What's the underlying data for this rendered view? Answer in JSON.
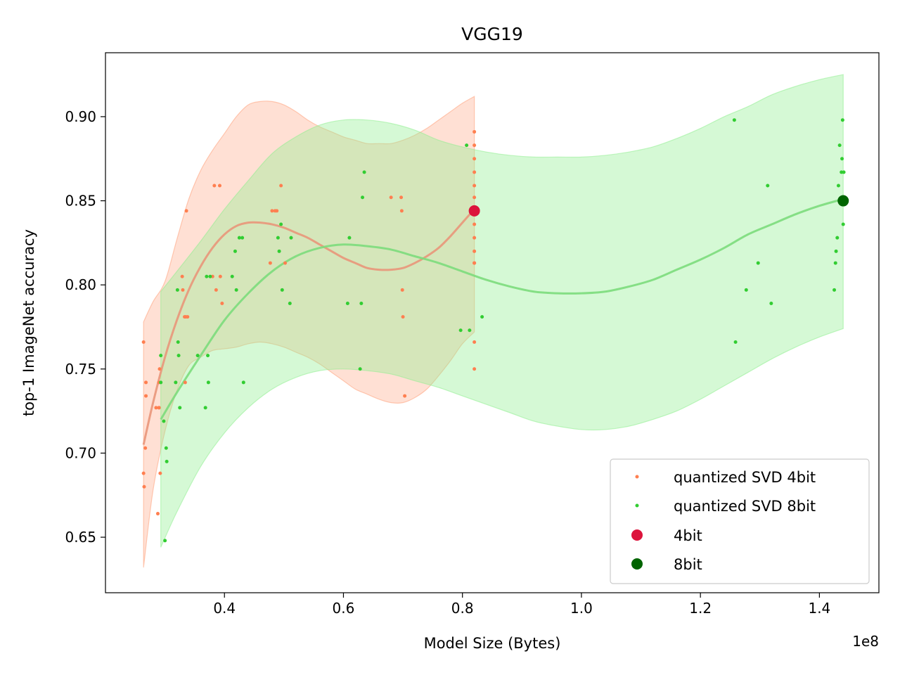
{
  "chart_data": {
    "type": "scatter",
    "title": "VGG19",
    "xlabel": "Model Size (Bytes)",
    "ylabel": "top-1 ImageNet accuracy",
    "x_offset_label": "1e8",
    "x_scale": 100000000,
    "xlim": [
      0.2,
      1.5
    ],
    "ylim": [
      0.617,
      0.938
    ],
    "x_ticks": [
      0.4,
      0.6,
      0.8,
      1.0,
      1.2,
      1.4
    ],
    "x_tick_labels": [
      "0.4",
      "0.6",
      "0.8",
      "1.0",
      "1.2",
      "1.4"
    ],
    "y_ticks": [
      0.65,
      0.7,
      0.75,
      0.8,
      0.85,
      0.9
    ],
    "y_tick_labels": [
      "0.65",
      "0.70",
      "0.75",
      "0.80",
      "0.85",
      "0.90"
    ],
    "grid": false,
    "legend_position": "lower-right",
    "series": [
      {
        "name": "quantized SVD 4bit",
        "kind": "points",
        "color": "#ff7f50",
        "x": [
          0.264,
          0.264,
          0.265,
          0.267,
          0.268,
          0.268,
          0.285,
          0.288,
          0.29,
          0.29,
          0.29,
          0.291,
          0.292,
          0.329,
          0.33,
          0.333,
          0.334,
          0.335,
          0.336,
          0.338,
          0.38,
          0.383,
          0.386,
          0.392,
          0.393,
          0.396,
          0.477,
          0.48,
          0.485,
          0.488,
          0.495,
          0.502,
          0.68,
          0.697,
          0.698,
          0.699,
          0.7,
          0.703,
          0.82,
          0.82,
          0.82,
          0.82,
          0.82,
          0.82,
          0.82,
          0.82,
          0.82,
          0.82,
          0.82,
          0.82,
          0.82,
          0.82
        ],
        "y": [
          0.766,
          0.688,
          0.68,
          0.703,
          0.742,
          0.734,
          0.727,
          0.664,
          0.742,
          0.727,
          0.727,
          0.75,
          0.688,
          0.805,
          0.797,
          0.781,
          0.742,
          0.781,
          0.844,
          0.781,
          0.805,
          0.859,
          0.797,
          0.859,
          0.805,
          0.789,
          0.813,
          0.844,
          0.844,
          0.844,
          0.859,
          0.813,
          0.852,
          0.852,
          0.844,
          0.797,
          0.781,
          0.734,
          0.891,
          0.883,
          0.875,
          0.867,
          0.859,
          0.852,
          0.844,
          0.836,
          0.828,
          0.82,
          0.813,
          0.813,
          0.766,
          0.75
        ]
      },
      {
        "name": "quantized SVD 8bit",
        "kind": "points",
        "color": "#32cd32",
        "x": [
          0.293,
          0.293,
          0.298,
          0.3,
          0.302,
          0.303,
          0.318,
          0.321,
          0.322,
          0.323,
          0.325,
          0.355,
          0.368,
          0.37,
          0.372,
          0.373,
          0.376,
          0.413,
          0.418,
          0.42,
          0.425,
          0.43,
          0.432,
          0.49,
          0.492,
          0.495,
          0.497,
          0.51,
          0.512,
          0.607,
          0.61,
          0.628,
          0.63,
          0.632,
          0.635,
          0.797,
          0.807,
          0.812,
          0.833,
          1.257,
          1.259,
          1.277,
          1.297,
          1.313,
          1.319,
          1.425,
          1.427,
          1.428,
          1.43,
          1.432,
          1.434,
          1.437,
          1.438,
          1.439,
          1.44,
          1.441
        ],
        "y": [
          0.758,
          0.742,
          0.719,
          0.648,
          0.703,
          0.695,
          0.742,
          0.797,
          0.766,
          0.758,
          0.727,
          0.758,
          0.727,
          0.805,
          0.758,
          0.742,
          0.805,
          0.805,
          0.82,
          0.797,
          0.828,
          0.828,
          0.742,
          0.828,
          0.82,
          0.836,
          0.797,
          0.789,
          0.828,
          0.789,
          0.828,
          0.75,
          0.789,
          0.852,
          0.867,
          0.773,
          0.883,
          0.773,
          0.781,
          0.898,
          0.766,
          0.797,
          0.813,
          0.859,
          0.789,
          0.797,
          0.813,
          0.82,
          0.828,
          0.859,
          0.883,
          0.867,
          0.875,
          0.898,
          0.836,
          0.867
        ]
      },
      {
        "name": "4bit",
        "kind": "marker",
        "color": "#dc143c",
        "x": [
          0.82
        ],
        "y": [
          0.844
        ]
      },
      {
        "name": "8bit",
        "kind": "marker",
        "color": "#006400",
        "x": [
          1.44
        ],
        "y": [
          0.85
        ]
      }
    ],
    "fits": [
      {
        "series": "quantized SVD 4bit",
        "color": "#e9967a",
        "band_color": "#ffa07a",
        "x": [
          0.264,
          0.28,
          0.3,
          0.32,
          0.34,
          0.36,
          0.38,
          0.4,
          0.42,
          0.44,
          0.46,
          0.48,
          0.5,
          0.52,
          0.54,
          0.56,
          0.58,
          0.6,
          0.62,
          0.64,
          0.66,
          0.68,
          0.7,
          0.72,
          0.74,
          0.76,
          0.78,
          0.8,
          0.82
        ],
        "y": [
          0.705,
          0.73,
          0.757,
          0.779,
          0.797,
          0.811,
          0.822,
          0.83,
          0.835,
          0.837,
          0.837,
          0.836,
          0.834,
          0.831,
          0.828,
          0.824,
          0.82,
          0.816,
          0.813,
          0.81,
          0.809,
          0.809,
          0.81,
          0.813,
          0.817,
          0.822,
          0.829,
          0.837,
          0.845
        ],
        "lower": [
          0.632,
          0.678,
          0.713,
          0.737,
          0.752,
          0.757,
          0.761,
          0.762,
          0.763,
          0.765,
          0.766,
          0.765,
          0.763,
          0.76,
          0.757,
          0.753,
          0.748,
          0.743,
          0.738,
          0.735,
          0.732,
          0.73,
          0.73,
          0.733,
          0.738,
          0.746,
          0.755,
          0.765,
          0.772
        ],
        "upper": [
          0.778,
          0.79,
          0.802,
          0.827,
          0.851,
          0.868,
          0.88,
          0.89,
          0.9,
          0.907,
          0.909,
          0.909,
          0.907,
          0.903,
          0.898,
          0.894,
          0.891,
          0.888,
          0.886,
          0.884,
          0.884,
          0.884,
          0.886,
          0.889,
          0.893,
          0.898,
          0.903,
          0.908,
          0.912
        ]
      },
      {
        "series": "quantized SVD 8bit",
        "color": "#7cdb7c",
        "band_color": "#90ee90",
        "x": [
          0.293,
          0.32,
          0.36,
          0.4,
          0.44,
          0.48,
          0.52,
          0.56,
          0.6,
          0.64,
          0.68,
          0.72,
          0.76,
          0.8,
          0.84,
          0.88,
          0.92,
          0.96,
          1.0,
          1.04,
          1.08,
          1.12,
          1.16,
          1.2,
          1.24,
          1.28,
          1.32,
          1.36,
          1.4,
          1.44
        ],
        "y": [
          0.72,
          0.736,
          0.758,
          0.779,
          0.795,
          0.808,
          0.817,
          0.822,
          0.824,
          0.823,
          0.821,
          0.817,
          0.813,
          0.808,
          0.803,
          0.799,
          0.796,
          0.795,
          0.795,
          0.796,
          0.799,
          0.803,
          0.809,
          0.815,
          0.822,
          0.83,
          0.836,
          0.842,
          0.847,
          0.851
        ],
        "lower": [
          0.644,
          0.665,
          0.692,
          0.712,
          0.727,
          0.738,
          0.745,
          0.749,
          0.75,
          0.749,
          0.747,
          0.743,
          0.739,
          0.734,
          0.729,
          0.724,
          0.719,
          0.716,
          0.714,
          0.714,
          0.716,
          0.72,
          0.725,
          0.732,
          0.74,
          0.748,
          0.756,
          0.763,
          0.769,
          0.774
        ],
        "upper": [
          0.796,
          0.808,
          0.826,
          0.845,
          0.862,
          0.878,
          0.888,
          0.895,
          0.898,
          0.898,
          0.896,
          0.892,
          0.886,
          0.882,
          0.879,
          0.877,
          0.876,
          0.876,
          0.876,
          0.877,
          0.879,
          0.882,
          0.887,
          0.893,
          0.9,
          0.906,
          0.913,
          0.918,
          0.922,
          0.925
        ]
      }
    ]
  }
}
